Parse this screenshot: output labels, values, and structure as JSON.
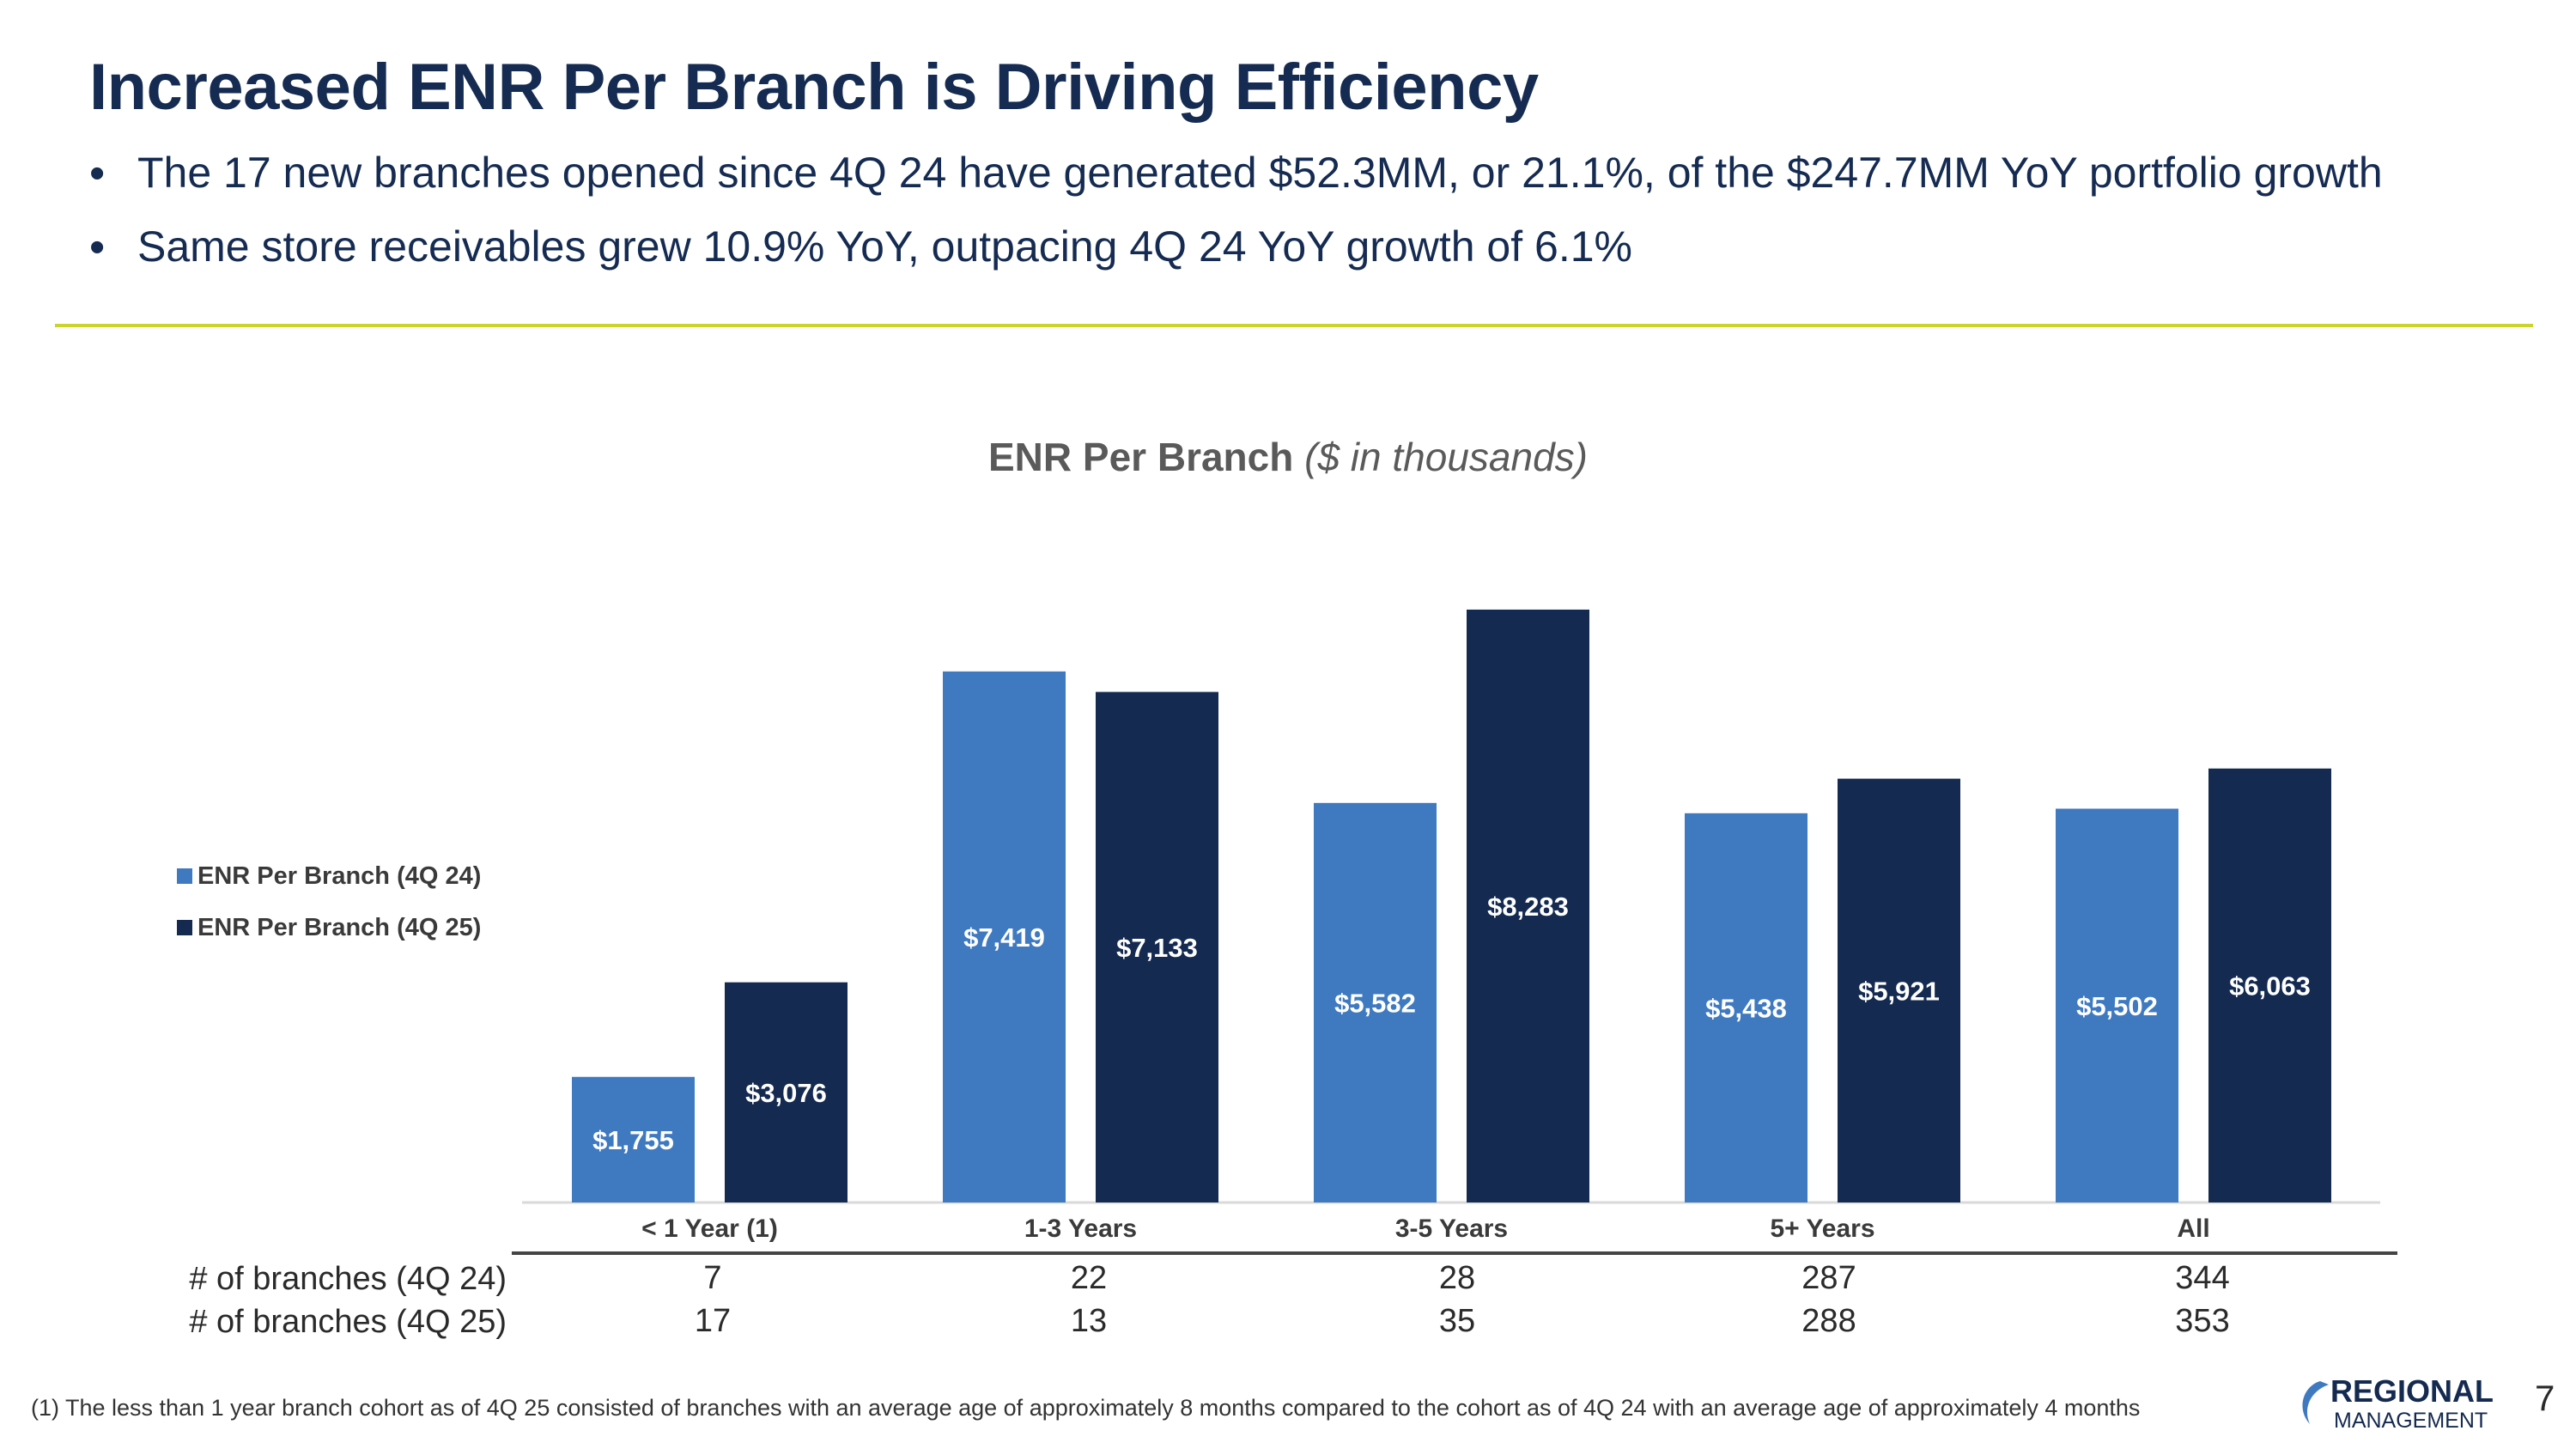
{
  "header": {
    "title": "Increased ENR Per Branch is Driving Efficiency",
    "bullets": [
      "The 17 new branches opened since 4Q 24 have generated $52.3MM, or 21.1%, of the $247.7MM YoY portfolio growth",
      "Same store receivables grew 10.9% YoY, outpacing 4Q 24 YoY growth of 6.1%"
    ]
  },
  "chart_data": {
    "type": "bar",
    "title": "ENR Per Branch",
    "subtitle": "($ in thousands)",
    "categories": [
      "< 1 Year (1)",
      "1-3 Years",
      "3-5 Years",
      "5+ Years",
      "All"
    ],
    "series": [
      {
        "name": "ENR Per Branch (4Q 24)",
        "values": [
          1755,
          7419,
          5582,
          5438,
          5502
        ],
        "labels": [
          "$1,755",
          "$7,419",
          "$5,582",
          "$5,438",
          "$5,502"
        ],
        "color": "#3f7ac1"
      },
      {
        "name": "ENR Per Branch (4Q 25)",
        "values": [
          3076,
          7133,
          8283,
          5921,
          6063
        ],
        "labels": [
          "$3,076",
          "$7,133",
          "$8,283",
          "$5,921",
          "$6,063"
        ],
        "color": "#142a50"
      }
    ],
    "ylim": [
      0,
      9000
    ],
    "grid": false,
    "legend_position": "left"
  },
  "branch_table": {
    "rows": [
      {
        "label": "# of branches (4Q 24)",
        "values": [
          "7",
          "22",
          "28",
          "287",
          "344"
        ]
      },
      {
        "label": "# of branches (4Q 25)",
        "values": [
          "17",
          "13",
          "35",
          "288",
          "353"
        ]
      }
    ]
  },
  "footer": {
    "footnote": "(1) The less than 1 year branch cohort as of 4Q 25 consisted of branches with an average age of approximately 8 months compared to the cohort as of 4Q 24 with an average age of approximately 4 months",
    "logo_line1": "REGIONAL",
    "logo_line2": "MANAGEMENT",
    "page_number": "7"
  }
}
